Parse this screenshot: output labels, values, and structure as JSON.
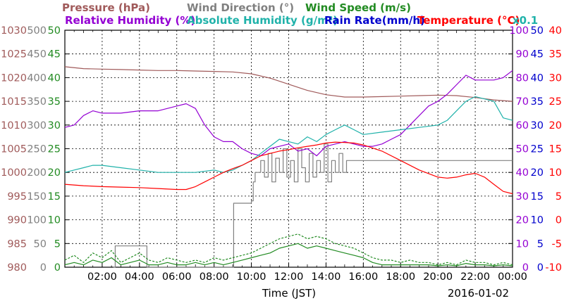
{
  "chart_data": {
    "type": "line",
    "header": {
      "row1": [
        {
          "text": "Pressure (hPa)",
          "color": "#a05a5a"
        },
        {
          "text": "Wind Direction (°)",
          "color": "#808080"
        },
        {
          "text": "Wind Speed (m/s)",
          "color": "#228b22"
        }
      ],
      "row2": [
        {
          "text": "Relative Humidity (%)",
          "color": "#9400d3"
        },
        {
          "text": "Absolute Humidity (g/m³)",
          "color": "#20b2aa"
        },
        {
          "text": "Rain Rate(mm/h)",
          "color": "#0000cd"
        },
        {
          "text": "Temperature (°C)",
          "color": "#ff0000"
        },
        {
          "text": "x0.1",
          "color": "#20b2aa"
        }
      ]
    },
    "xlabel": "Time (JST)",
    "date": "2016-01-02",
    "x_ticks": [
      "02:00",
      "04:00",
      "06:00",
      "08:00",
      "10:00",
      "12:00",
      "14:00",
      "16:00",
      "18:00",
      "20:00",
      "22:00",
      "00:00"
    ],
    "x_range": [
      0,
      24
    ],
    "axes": {
      "pressure": {
        "color": "#a05a5a",
        "range": [
          980,
          1030
        ],
        "ticks": [
          "980",
          "985",
          "990",
          "995",
          "1000",
          "1005",
          "1010",
          "1015",
          "1020",
          "1025",
          "1030"
        ]
      },
      "wind_direction": {
        "color": "#808080",
        "range": [
          0,
          500
        ],
        "ticks": [
          "0",
          "50",
          "100",
          "150",
          "200",
          "250",
          "300",
          "350",
          "400",
          "450",
          "500"
        ]
      },
      "wind_speed": {
        "color": "#228b22",
        "range": [
          0,
          50
        ],
        "ticks": [
          "0",
          "5",
          "10",
          "15",
          "20",
          "25",
          "30",
          "35",
          "40",
          "45",
          "50"
        ]
      },
      "humidity": {
        "color": "#9400d3",
        "range": [
          0,
          100
        ],
        "ticks": [
          "0",
          "10",
          "20",
          "30",
          "40",
          "50",
          "60",
          "70",
          "80",
          "90",
          "100"
        ]
      },
      "rain_rate": {
        "color": "#0000cd",
        "range": [
          0,
          50
        ],
        "ticks": [
          "0",
          "5",
          "10",
          "15",
          "20",
          "25",
          "30",
          "35",
          "40",
          "45",
          "50"
        ]
      },
      "temperature": {
        "color": "#ff0000",
        "range": [
          -10,
          40
        ],
        "ticks": [
          "-10",
          "-5",
          "0",
          "5",
          "10",
          "15",
          "20",
          "25",
          "30",
          "35",
          "40"
        ]
      }
    },
    "series": [
      {
        "name": "Pressure (hPa)",
        "axis": "pressure",
        "color": "#a05a5a",
        "x": [
          0,
          1,
          2,
          3,
          4,
          5,
          6,
          7,
          8,
          9,
          10,
          11,
          12,
          13,
          14,
          15,
          16,
          17,
          18,
          19,
          20,
          21,
          22,
          23,
          24
        ],
        "y": [
          1022.3,
          1021.9,
          1021.8,
          1021.7,
          1021.6,
          1021.5,
          1021.5,
          1021.4,
          1021.3,
          1021.2,
          1020.8,
          1019.9,
          1018.6,
          1017.3,
          1016.4,
          1015.9,
          1015.9,
          1016.0,
          1016.1,
          1016.2,
          1016.3,
          1016.2,
          1015.8,
          1015.3,
          1015.0
        ]
      },
      {
        "name": "Wind Direction (°)",
        "axis": "wind_direction",
        "color": "#808080",
        "step": true,
        "x": [
          2.6,
          2.7,
          4.3,
          4.4,
          9.0,
          9.05,
          9.1,
          9.9,
          10.0,
          10.1,
          10.2,
          10.5,
          10.7,
          10.9,
          11.1,
          11.3,
          11.5,
          11.7,
          11.9,
          12.1,
          12.3,
          12.5,
          12.7,
          12.9,
          13.1,
          13.3,
          13.5,
          13.7,
          13.9,
          14.1,
          14.3,
          14.5,
          14.7,
          14.9,
          15.1,
          15.3,
          16.0,
          24.0
        ],
        "y": [
          0,
          45,
          45,
          0,
          0,
          135,
          135,
          135,
          140,
          180,
          200,
          225,
          190,
          240,
          180,
          230,
          200,
          250,
          190,
          225,
          180,
          250,
          210,
          180,
          240,
          190,
          225,
          200,
          260,
          180,
          225,
          200,
          240,
          200,
          225,
          225,
          225,
          225
        ]
      },
      {
        "name": "Wind Speed max (m/s)",
        "axis": "wind_speed",
        "color": "#228b22",
        "dashed": true,
        "x": [
          0,
          0.5,
          1,
          1.5,
          2,
          2.5,
          3,
          3.5,
          4,
          4.5,
          5,
          5.5,
          6,
          6.5,
          7,
          7.5,
          8,
          8.5,
          9,
          9.5,
          10,
          10.5,
          11,
          11.5,
          12,
          12.5,
          13,
          13.5,
          14,
          14.5,
          15,
          15.5,
          16,
          16.5,
          17,
          17.5,
          18,
          18.5,
          19,
          19.5,
          20,
          20.5,
          21,
          21.5,
          22,
          22.5,
          23,
          23.5,
          24
        ],
        "y": [
          1.5,
          2.5,
          1.0,
          3.0,
          2.0,
          3.5,
          1.0,
          2.0,
          3.0,
          1.5,
          1.0,
          2.0,
          1.5,
          1.0,
          1.5,
          1.0,
          2.0,
          1.5,
          2.0,
          2.5,
          3.0,
          4.0,
          5.0,
          6.0,
          6.5,
          7.0,
          6.0,
          6.5,
          6.0,
          5.0,
          4.5,
          4.0,
          3.0,
          2.0,
          1.5,
          1.5,
          1.0,
          1.5,
          1.0,
          1.0,
          0.5,
          1.0,
          0.5,
          1.5,
          1.0,
          1.0,
          0.5,
          1.0,
          0.5
        ]
      },
      {
        "name": "Wind Speed (m/s)",
        "axis": "wind_speed",
        "color": "#228b22",
        "x": [
          0,
          0.5,
          1,
          1.5,
          2,
          2.5,
          3,
          3.5,
          4,
          4.5,
          5,
          5.5,
          6,
          6.5,
          7,
          7.5,
          8,
          8.5,
          9,
          9.5,
          10,
          10.5,
          11,
          11.5,
          12,
          12.5,
          13,
          13.5,
          14,
          14.5,
          15,
          15.5,
          16,
          16.5,
          17,
          17.5,
          18,
          18.5,
          19,
          19.5,
          20,
          20.5,
          21,
          21.5,
          22,
          22.5,
          23,
          23.5,
          24
        ],
        "y": [
          0.5,
          1.0,
          0.5,
          1.5,
          1.0,
          2.0,
          0.5,
          1.0,
          1.5,
          0.5,
          0.5,
          1.0,
          0.5,
          0.5,
          1.0,
          0.5,
          1.0,
          0.5,
          1.0,
          1.5,
          2.0,
          2.5,
          3.0,
          4.0,
          4.5,
          5.0,
          4.0,
          4.5,
          4.0,
          3.5,
          3.0,
          2.5,
          2.0,
          1.0,
          0.5,
          0.5,
          0.5,
          0.5,
          0.5,
          0.5,
          0.3,
          0.5,
          0.3,
          0.8,
          0.5,
          0.5,
          0.3,
          0.5,
          0.3
        ]
      },
      {
        "name": "Relative Humidity (%)",
        "axis": "humidity",
        "color": "#9400d3",
        "x": [
          0,
          0.5,
          1,
          1.5,
          2,
          3,
          4,
          5,
          6,
          6.5,
          7,
          7.5,
          8,
          8.5,
          9,
          9.5,
          10,
          10.5,
          11,
          11.5,
          12,
          12.5,
          13,
          13.5,
          14,
          14.5,
          15,
          15.5,
          16,
          16.5,
          17,
          17.5,
          18,
          18.5,
          19,
          19.5,
          20,
          20.5,
          21,
          21.5,
          22,
          22.5,
          23,
          23.5,
          24
        ],
        "y": [
          59,
          60,
          64,
          66,
          65,
          65,
          66,
          66,
          68,
          69,
          67,
          60,
          55,
          53,
          53,
          50,
          48,
          47,
          50,
          51,
          52,
          49,
          50,
          47,
          51,
          52,
          53,
          52,
          51,
          51,
          52,
          54,
          56,
          60,
          64,
          68,
          70,
          73,
          77,
          81,
          79,
          79,
          79,
          80,
          83
        ]
      },
      {
        "name": "Absolute Humidity (g/m³)",
        "axis": "humidity",
        "color": "#20b2aa",
        "x": [
          0,
          0.5,
          1,
          1.5,
          2,
          3,
          4,
          5,
          6,
          7,
          8,
          8.5,
          9,
          9.5,
          10,
          10.5,
          11,
          11.5,
          12,
          12.5,
          13,
          13.5,
          14,
          14.5,
          15,
          15.5,
          16,
          17,
          18,
          19,
          20,
          20.5,
          21,
          21.5,
          22,
          22.5,
          23,
          23.5,
          24
        ],
        "y": [
          40,
          41,
          42,
          43,
          43,
          42,
          41,
          40,
          40,
          40,
          41,
          40,
          41,
          43,
          45,
          48,
          51,
          54,
          53,
          52,
          55,
          53,
          56,
          58,
          60,
          58,
          56,
          57,
          58,
          59,
          60,
          62,
          66,
          70,
          72,
          71,
          70,
          63,
          62
        ]
      },
      {
        "name": "Temperature (°C)",
        "axis": "temperature",
        "color": "#ff0000",
        "x": [
          0,
          1,
          2,
          3,
          4,
          5,
          6,
          6.5,
          7,
          7.5,
          8,
          8.5,
          9,
          9.5,
          10,
          10.5,
          11,
          11.5,
          12,
          12.5,
          13,
          13.5,
          14,
          14.5,
          15,
          15.5,
          16,
          17,
          18,
          19,
          20,
          20.5,
          21,
          21.5,
          22,
          22.5,
          23,
          23.5,
          24
        ],
        "y": [
          7.5,
          7.2,
          7.0,
          6.9,
          6.8,
          6.6,
          6.4,
          6.4,
          7.0,
          8.0,
          9.0,
          10.0,
          10.8,
          11.5,
          12.5,
          13.5,
          14.0,
          14.5,
          14.8,
          15.2,
          15.5,
          15.8,
          16.2,
          16.4,
          16.3,
          16.2,
          15.8,
          14.5,
          12.5,
          10.5,
          9.0,
          8.8,
          9.0,
          9.5,
          9.8,
          9.0,
          7.5,
          6.0,
          5.5
        ]
      }
    ]
  }
}
